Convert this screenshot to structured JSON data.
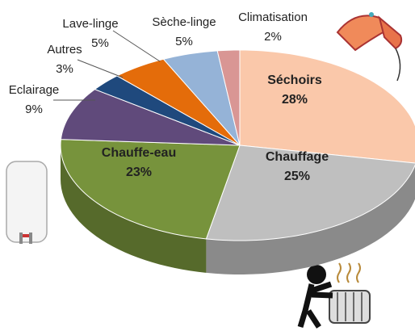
{
  "chart_data": {
    "type": "pie",
    "categories": [
      "Séchoirs",
      "Chauffage",
      "Chauffe-eau",
      "Eclairage",
      "Autres",
      "Lave-linge",
      "Sèche-linge",
      "Climatisation"
    ],
    "values": [
      28,
      25,
      23,
      9,
      3,
      5,
      5,
      2
    ],
    "value_labels": [
      "28%",
      "25%",
      "23%",
      "9%",
      "3%",
      "5%",
      "5%",
      "2%"
    ],
    "colors": [
      "#fac8aa",
      "#bfbfbf",
      "#77933c",
      "#604a7b",
      "#1f497d",
      "#e46c0a",
      "#95b3d7",
      "#d99694"
    ]
  }
}
